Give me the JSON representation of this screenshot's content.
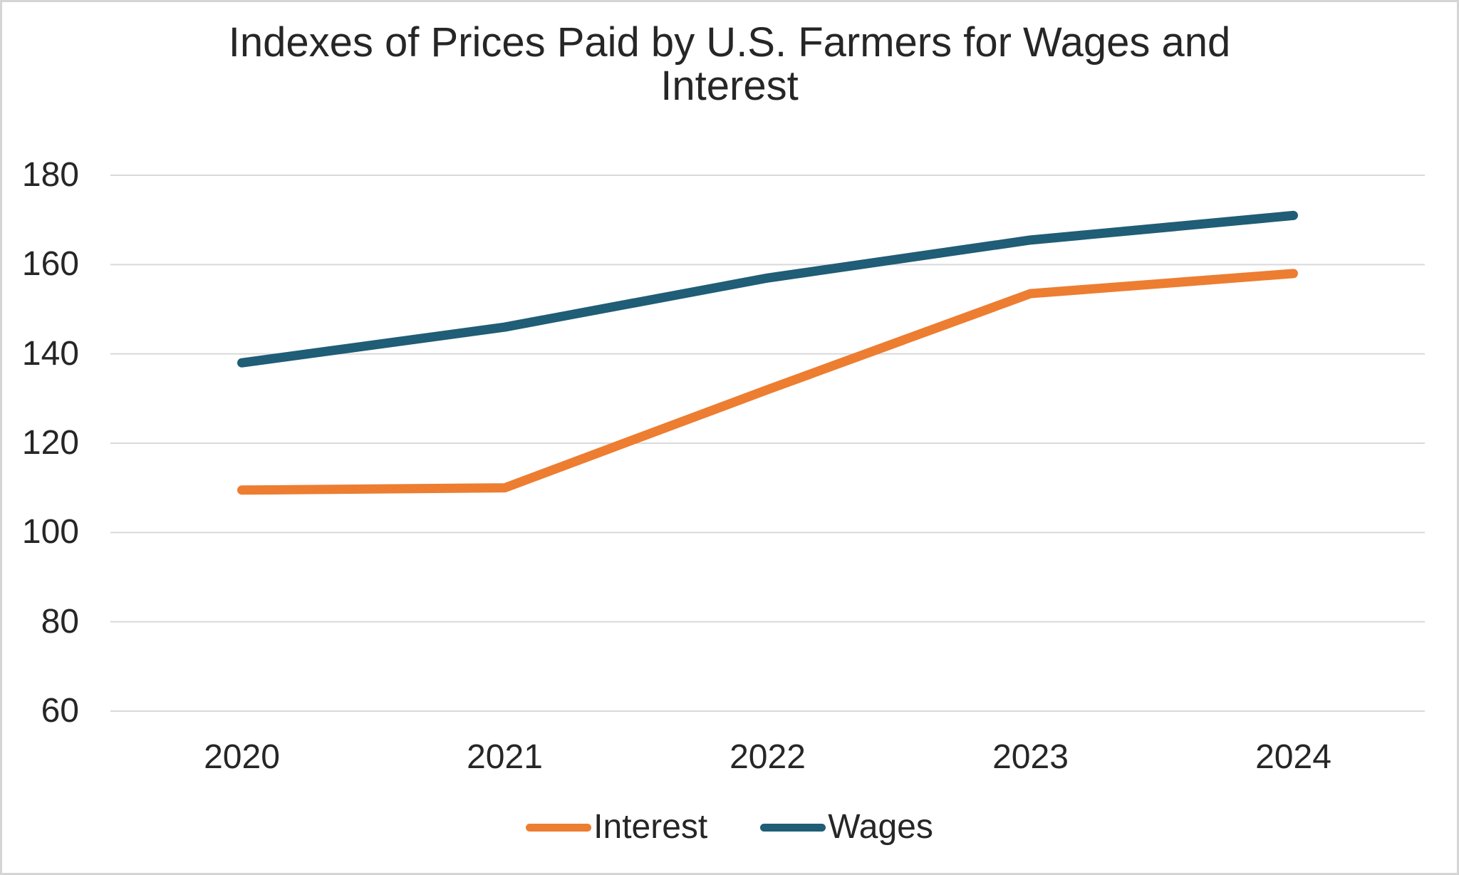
{
  "chart_data": {
    "type": "line",
    "title": "Indexes of Prices Paid by U.S. Farmers for Wages and Interest",
    "categories": [
      "2020",
      "2021",
      "2022",
      "2023",
      "2024"
    ],
    "series": [
      {
        "name": "Interest",
        "color": "#ED7D31",
        "values": [
          109.5,
          110,
          132,
          153.5,
          158
        ]
      },
      {
        "name": "Wages",
        "color": "#205D76",
        "values": [
          138,
          146,
          157,
          165.5,
          171
        ]
      }
    ],
    "yticks": [
      180,
      160,
      140,
      120,
      100,
      80,
      60
    ],
    "ylim": [
      60,
      180
    ],
    "xlabel": "",
    "ylabel": "",
    "grid": "horizontal",
    "gridline_color": "#D9D9D9",
    "legend_position": "bottom",
    "background": "#FFFFFF",
    "border_color": "#D5D5D5"
  }
}
